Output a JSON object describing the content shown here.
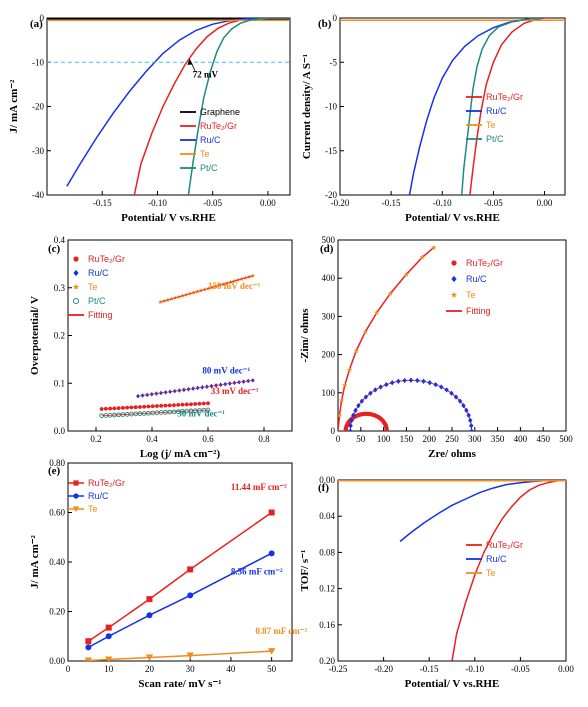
{
  "chart_data": [
    {
      "panel": "(a)",
      "type": "line",
      "xlabel": "Potential/ V vs.RHE",
      "ylabel": "J/ mA cm⁻²",
      "xlim": [
        -0.2,
        0.02
      ],
      "ylim": [
        -40,
        0
      ],
      "xticks": [
        "-0.15",
        "-0.10",
        "-0.05",
        "0.00"
      ],
      "yticks": [
        "0",
        "-10",
        "-20",
        "-30",
        "-40"
      ],
      "legend": "bottom-right",
      "series": [
        {
          "name": "Graphene",
          "color": "#000000",
          "x": [
            -0.2,
            0.02
          ],
          "y": [
            -0.3,
            -0.3
          ]
        },
        {
          "name": "RuTe₂/Gr",
          "color": "#e8201f",
          "x": [
            -0.121,
            -0.115,
            -0.105,
            -0.095,
            -0.085,
            -0.075,
            -0.065,
            -0.055,
            -0.045,
            -0.035,
            -0.025,
            -0.015,
            0.0,
            0.02
          ],
          "y": [
            -40,
            -33,
            -26,
            -20,
            -15,
            -10.5,
            -7,
            -4.2,
            -2.3,
            -1.1,
            -0.5,
            -0.2,
            0,
            0
          ]
        },
        {
          "name": "Ru/C",
          "color": "#1432e6",
          "x": [
            -0.182,
            -0.17,
            -0.155,
            -0.14,
            -0.125,
            -0.11,
            -0.095,
            -0.08,
            -0.065,
            -0.05,
            -0.035,
            -0.02,
            0.0,
            0.02
          ],
          "y": [
            -38,
            -33,
            -27,
            -21.5,
            -16.5,
            -12,
            -8,
            -5,
            -2.8,
            -1.4,
            -0.6,
            -0.2,
            0,
            0
          ]
        },
        {
          "name": "Te",
          "color": "#f28c1c",
          "x": [
            -0.2,
            0.02
          ],
          "y": [
            -0.5,
            -0.5
          ]
        },
        {
          "name": "Pt/C",
          "color": "#1a8a82",
          "x": [
            -0.072,
            -0.068,
            -0.063,
            -0.058,
            -0.052,
            -0.046,
            -0.04,
            -0.033,
            -0.025,
            -0.015,
            0.0,
            0.02
          ],
          "y": [
            -40,
            -33,
            -25,
            -18,
            -12,
            -7.5,
            -4.5,
            -2.5,
            -1.2,
            -0.4,
            0,
            0
          ]
        }
      ],
      "annotations": [
        {
          "text": "72 mV",
          "x": -0.068,
          "y": -13.5
        },
        {
          "type": "hline",
          "y": -10,
          "color": "#39c6e8"
        }
      ]
    },
    {
      "panel": "(b)",
      "type": "line",
      "xlabel": "Potential/ V vs.RHE",
      "ylabel": "Current density/ A S⁻¹",
      "xlim": [
        -0.2,
        0.02
      ],
      "ylim": [
        -20,
        0
      ],
      "xticks": [
        "-0.20",
        "-0.15",
        "-0.10",
        "-0.05",
        "0.00"
      ],
      "yticks": [
        "0",
        "-5",
        "-10",
        "-15",
        "-20"
      ],
      "legend": "right",
      "series": [
        {
          "name": "RuTe₂/Gr",
          "color": "#e8201f",
          "x": [
            -0.073,
            -0.07,
            -0.066,
            -0.062,
            -0.057,
            -0.05,
            -0.042,
            -0.032,
            -0.02,
            -0.008,
            0.0,
            0.005
          ],
          "y": [
            -20,
            -17,
            -13.5,
            -10.5,
            -7.5,
            -5,
            -3,
            -1.6,
            -0.6,
            -0.15,
            0,
            0
          ]
        },
        {
          "name": "Ru/C",
          "color": "#1432e6",
          "x": [
            -0.132,
            -0.128,
            -0.122,
            -0.115,
            -0.108,
            -0.1,
            -0.09,
            -0.078,
            -0.065,
            -0.05,
            -0.035,
            -0.02,
            -0.005,
            0.0
          ],
          "y": [
            -20,
            -17.5,
            -14.5,
            -11.5,
            -9,
            -6.8,
            -4.8,
            -3.2,
            -2,
            -1.1,
            -0.5,
            -0.2,
            0,
            0
          ]
        },
        {
          "name": "Te",
          "color": "#f28c1c",
          "x": [
            -0.2,
            0.02
          ],
          "y": [
            -0.25,
            -0.25
          ]
        },
        {
          "name": "Pt/C",
          "color": "#1a8a82",
          "x": [
            -0.081,
            -0.079,
            -0.076,
            -0.073,
            -0.07,
            -0.066,
            -0.061,
            -0.054,
            -0.045,
            -0.03,
            -0.015,
            0.0
          ],
          "y": [
            -20,
            -17,
            -14,
            -11,
            -8,
            -5.5,
            -3.5,
            -2,
            -1,
            -0.35,
            -0.1,
            0
          ]
        }
      ]
    },
    {
      "panel": "(c)",
      "type": "scatter",
      "xlabel": "Log (j/ mA cm⁻²)",
      "ylabel": "Overpotential/ V",
      "xlim": [
        0.1,
        0.9
      ],
      "ylim": [
        0.0,
        0.4
      ],
      "xticks": [
        "0.2",
        "0.4",
        "0.6",
        "0.8"
      ],
      "yticks": [
        "0.0",
        "0.1",
        "0.2",
        "0.3",
        "0.4"
      ],
      "legend": "top-left",
      "series": [
        {
          "name": "RuTe₂/Gr",
          "color": "#e8201f",
          "marker": "circle",
          "x_range": [
            0.22,
            0.6
          ],
          "y_range": [
            0.046,
            0.058
          ]
        },
        {
          "name": "Ru/C",
          "color": "#1432e6",
          "marker": "diamond",
          "x_range": [
            0.35,
            0.76
          ],
          "y_range": [
            0.073,
            0.106
          ]
        },
        {
          "name": "Te",
          "color": "#f28c1c",
          "marker": "star",
          "x_range": [
            0.43,
            0.76
          ],
          "y_range": [
            0.27,
            0.325
          ]
        },
        {
          "name": "Pt/C",
          "color": "#1a8a82",
          "marker": "open-circle",
          "x_range": [
            0.22,
            0.6
          ],
          "y_range": [
            0.032,
            0.044
          ]
        },
        {
          "name": "Fitting",
          "color": "#e8201f",
          "marker": "line"
        }
      ],
      "annotations": [
        {
          "text": "150 mV dec⁻¹",
          "color": "#f28c1c",
          "x": 0.6,
          "y": 0.297
        },
        {
          "text": "80 mV dec⁻¹",
          "color": "#1432e6",
          "x": 0.58,
          "y": 0.12
        },
        {
          "text": "33 mV dec⁻¹",
          "color": "#e8201f",
          "x": 0.61,
          "y": 0.078
        },
        {
          "text": "30 mV dec⁻¹",
          "color": "#1a8a82",
          "x": 0.49,
          "y": 0.03
        }
      ]
    },
    {
      "panel": "(d)",
      "type": "scatter",
      "xlabel": "Zre/ ohms",
      "ylabel": "-Zim/ ohms",
      "xlim": [
        0,
        500
      ],
      "ylim": [
        0,
        500
      ],
      "xticks": [
        "0",
        "50",
        "100",
        "150",
        "200",
        "250",
        "300",
        "350",
        "400",
        "450",
        "500"
      ],
      "yticks": [
        "0",
        "100",
        "200",
        "300",
        "400",
        "500"
      ],
      "legend": "top-right",
      "series": [
        {
          "name": "RuTe₂/Gr",
          "color": "#e8201f",
          "marker": "circle",
          "semicircle": {
            "center": 62,
            "radius": 45
          }
        },
        {
          "name": "Ru/C",
          "color": "#1432e6",
          "marker": "diamond",
          "semicircle": {
            "center": 160,
            "radius": 133
          }
        },
        {
          "name": "Te",
          "color": "#f28c1c",
          "marker": "star",
          "curve": {
            "x": [
              0,
              3,
              8,
              15,
              25,
              40,
              60,
              85,
              115,
              150,
              185,
              210
            ],
            "y": [
              0,
              40,
              80,
              120,
              160,
              210,
              260,
              310,
              360,
              410,
              455,
              480
            ]
          }
        },
        {
          "name": "Fitting",
          "color": "#e8201f",
          "marker": "line"
        }
      ]
    },
    {
      "panel": "(e)",
      "type": "line",
      "xlabel": "Scan rate/ mV s⁻¹",
      "ylabel": "J/ mA cm⁻²",
      "xlim": [
        0,
        55
      ],
      "ylim": [
        0,
        0.8
      ],
      "xticks": [
        "0",
        "10",
        "20",
        "30",
        "40",
        "50"
      ],
      "yticks": [
        "0.00",
        "0.20",
        "0.40",
        "0.60",
        "0.80"
      ],
      "legend": "top-left",
      "series": [
        {
          "name": "RuTe₂/Gr",
          "color": "#e8201f",
          "marker": "square",
          "x": [
            5,
            10,
            20,
            30,
            50
          ],
          "y": [
            0.08,
            0.135,
            0.25,
            0.37,
            0.6
          ]
        },
        {
          "name": "Ru/C",
          "color": "#1432e6",
          "marker": "circle",
          "x": [
            5,
            10,
            20,
            30,
            50
          ],
          "y": [
            0.055,
            0.1,
            0.185,
            0.265,
            0.435
          ]
        },
        {
          "name": "Te",
          "color": "#f28c1c",
          "marker": "triangle-down",
          "x": [
            5,
            10,
            20,
            30,
            50
          ],
          "y": [
            0.002,
            0.006,
            0.014,
            0.022,
            0.04
          ]
        }
      ],
      "annotations": [
        {
          "text": "11.44 mF cm⁻²",
          "color": "#e8201f",
          "x": 40,
          "y": 0.69
        },
        {
          "text": "8.36 mF cm⁻²",
          "color": "#1432e6",
          "x": 40,
          "y": 0.35
        },
        {
          "text": "0.87 mF cm⁻²",
          "color": "#f28c1c",
          "x": 46,
          "y": 0.11
        }
      ]
    },
    {
      "panel": "(f)",
      "type": "line",
      "xlabel": "Potential/ V vs.RHE",
      "ylabel": "TOF/ s⁻¹",
      "xlim": [
        -0.25,
        0.0
      ],
      "ylim": [
        0.2,
        0.0
      ],
      "xticks": [
        "-0.25",
        "-0.20",
        "-0.15",
        "-0.10",
        "-0.05",
        "0.00"
      ],
      "yticks": [
        "0.00",
        "0.04",
        "0.08",
        "0.12",
        "0.16",
        "0.20"
      ],
      "legend": "center-right",
      "series": [
        {
          "name": "RuTe₂/Gr",
          "color": "#e8201f",
          "x": [
            -0.125,
            -0.12,
            -0.11,
            -0.1,
            -0.09,
            -0.08,
            -0.07,
            -0.06,
            -0.05,
            -0.04,
            -0.03,
            -0.02,
            -0.01,
            0.0
          ],
          "y": [
            0.2,
            0.17,
            0.135,
            0.105,
            0.08,
            0.06,
            0.043,
            0.03,
            0.019,
            0.011,
            0.006,
            0.003,
            0.001,
            0.0
          ]
        },
        {
          "name": "Ru/C",
          "color": "#1432e6",
          "x": [
            -0.182,
            -0.17,
            -0.155,
            -0.14,
            -0.125,
            -0.11,
            -0.095,
            -0.08,
            -0.065,
            -0.05,
            -0.035,
            -0.02,
            0.0
          ],
          "y": [
            0.068,
            0.058,
            0.047,
            0.037,
            0.028,
            0.021,
            0.014,
            0.009,
            0.005,
            0.003,
            0.0015,
            0.0005,
            0.0
          ]
        },
        {
          "name": "Te",
          "color": "#f28c1c",
          "x": [
            -0.25,
            0.0
          ],
          "y": [
            0.0008,
            0.0008
          ]
        }
      ]
    }
  ]
}
